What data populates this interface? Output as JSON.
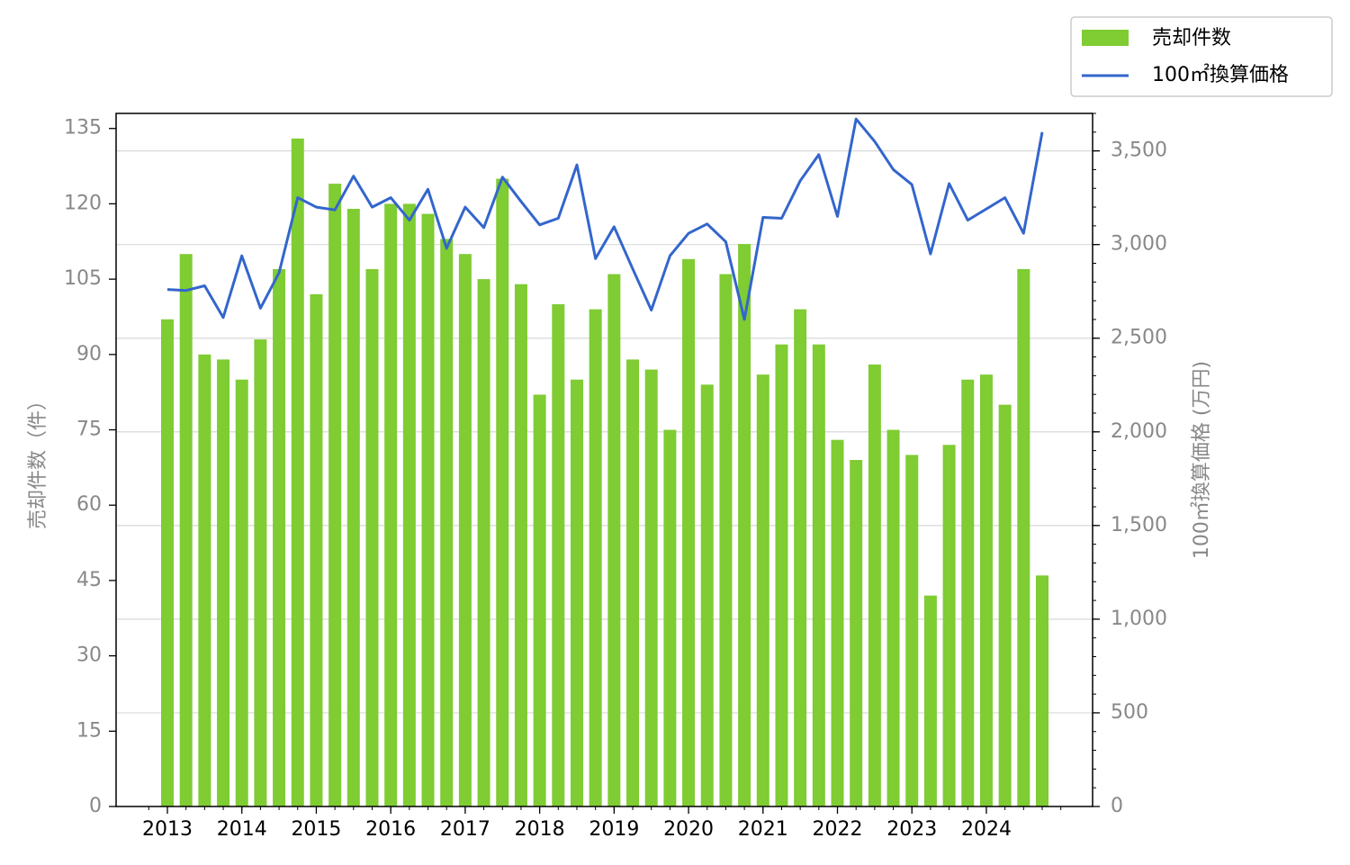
{
  "chart_data": {
    "type": "bar",
    "x_tick_labels": [
      "2013",
      "2014",
      "2015",
      "2016",
      "2017",
      "2018",
      "2019",
      "2020",
      "2021",
      "2022",
      "2023",
      "2024"
    ],
    "ylabel_left": "売却件数（件）",
    "ylabel_right": "100㎡換算価格 (万円)",
    "ylim_left": [
      0,
      138
    ],
    "ylim_right": [
      0,
      3700
    ],
    "yticks_left": [
      "0",
      "15",
      "30",
      "45",
      "60",
      "75",
      "90",
      "105",
      "120",
      "135"
    ],
    "yticks_right": [
      "0",
      "500",
      "1,000",
      "1,500",
      "2,000",
      "2,500",
      "3,000",
      "3,500"
    ],
    "grid": "horizontal (right axis)",
    "legend_position": "top-right, outside plot",
    "series": [
      {
        "name": "売却件数",
        "type": "bar",
        "axis": "left",
        "color": "#7fcc33",
        "values": [
          97,
          110,
          90,
          89,
          85,
          93,
          107,
          133,
          102,
          124,
          119,
          107,
          120,
          120,
          118,
          113,
          110,
          105,
          125,
          104,
          82,
          100,
          85,
          99,
          106,
          89,
          87,
          75,
          109,
          84,
          106,
          112,
          86,
          92,
          99,
          92,
          73,
          69,
          88,
          75,
          70,
          42,
          72,
          85,
          86,
          80,
          107,
          46
        ]
      },
      {
        "name": "100㎡換算価格",
        "type": "line",
        "axis": "right",
        "color": "#3366cc",
        "values": [
          2760,
          2755,
          2780,
          2610,
          2940,
          2660,
          2850,
          3250,
          3200,
          3185,
          3365,
          3200,
          3250,
          3130,
          3295,
          2980,
          3200,
          3090,
          3360,
          3230,
          3105,
          3140,
          3425,
          2925,
          3095,
          2870,
          2650,
          2940,
          3060,
          3110,
          3015,
          2600,
          3145,
          3140,
          3340,
          3480,
          3150,
          3670,
          3550,
          3400,
          3320,
          2950,
          3325,
          3130,
          3190,
          3250,
          3060,
          3600
        ]
      }
    ]
  }
}
